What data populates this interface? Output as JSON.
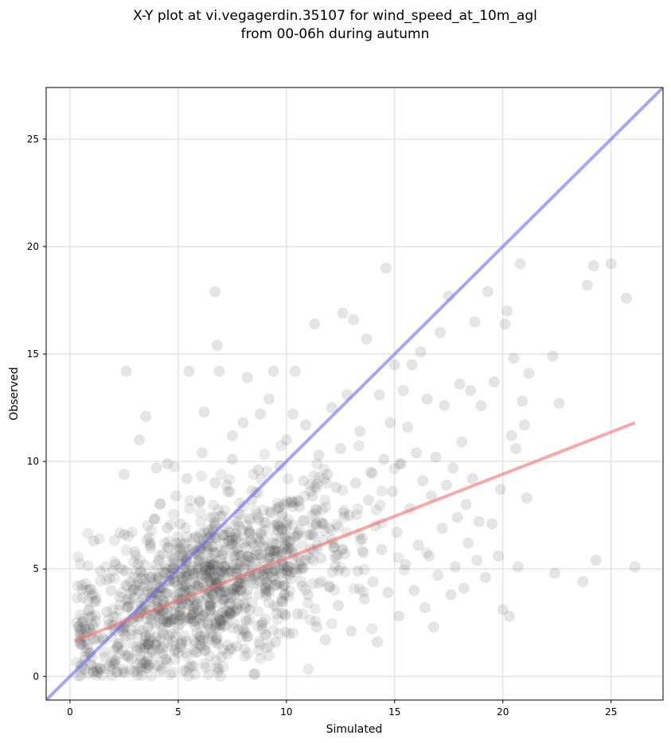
{
  "chart_data": {
    "type": "scatter",
    "title_line1": "X-Y plot at vi.vegagerdin.35107 for wind_speed_at_10m_agl",
    "title_line2": "from 00-06h during autumn",
    "xlabel": "Simulated",
    "ylabel": "Observed",
    "xlim": [
      -1.1,
      27.4
    ],
    "ylim": [
      -1.1,
      27.4
    ],
    "xticks": [
      0,
      5,
      10,
      15,
      20,
      25
    ],
    "yticks": [
      0,
      5,
      10,
      15,
      20,
      25
    ],
    "xtick_labels": [
      "0",
      "5",
      "10",
      "15",
      "20",
      "25"
    ],
    "ytick_labels": [
      "0",
      "5",
      "10",
      "15",
      "20",
      "25"
    ],
    "grid": true,
    "colors": {
      "points": "#333333",
      "identity_line": "#6b6bf0",
      "fit_line": "#f07070",
      "grid": "#e6e6e6"
    },
    "identity_line": {
      "x": [
        -1.1,
        27.4
      ],
      "y": [
        -1.1,
        27.4
      ]
    },
    "fit_line": {
      "x": [
        0.2,
        26.1
      ],
      "y": [
        1.65,
        11.8
      ]
    },
    "points": [
      [
        0.5,
        1.5
      ],
      [
        0.7,
        2.2
      ],
      [
        0.9,
        1.1
      ],
      [
        1.0,
        2.8
      ],
      [
        1.1,
        6.3
      ],
      [
        1.2,
        3.5
      ],
      [
        1.3,
        0.2
      ],
      [
        1.4,
        4.9
      ],
      [
        1.5,
        1.8
      ],
      [
        1.7,
        3.0
      ],
      [
        1.8,
        2.4
      ],
      [
        1.9,
        4.0
      ],
      [
        2.0,
        0.6
      ],
      [
        2.1,
        5.2
      ],
      [
        2.2,
        1.4
      ],
      [
        2.3,
        3.7
      ],
      [
        2.4,
        2.1
      ],
      [
        2.5,
        6.6
      ],
      [
        2.5,
        9.4
      ],
      [
        2.6,
        14.2
      ],
      [
        2.7,
        0.9
      ],
      [
        2.8,
        4.4
      ],
      [
        2.9,
        2.7
      ],
      [
        3.0,
        5.8
      ],
      [
        3.1,
        1.2
      ],
      [
        3.2,
        11.0
      ],
      [
        3.3,
        3.1
      ],
      [
        3.4,
        4.7
      ],
      [
        3.5,
        12.1
      ],
      [
        3.5,
        0.4
      ],
      [
        3.6,
        2.3
      ],
      [
        3.7,
        6.1
      ],
      [
        3.8,
        3.9
      ],
      [
        3.9,
        7.3
      ],
      [
        4.0,
        1.6
      ],
      [
        4.0,
        9.7
      ],
      [
        4.1,
        5.4
      ],
      [
        4.2,
        2.9
      ],
      [
        4.3,
        4.1
      ],
      [
        4.4,
        0.8
      ],
      [
        4.5,
        6.9
      ],
      [
        4.5,
        9.9
      ],
      [
        4.6,
        3.3
      ],
      [
        4.7,
        2.0
      ],
      [
        4.8,
        5.0
      ],
      [
        4.9,
        8.4
      ],
      [
        5.0,
        1.1
      ],
      [
        5.0,
        3.6
      ],
      [
        5.1,
        7.1
      ],
      [
        5.2,
        4.5
      ],
      [
        5.3,
        2.6
      ],
      [
        5.4,
        9.2
      ],
      [
        5.5,
        14.2
      ],
      [
        5.5,
        5.9
      ],
      [
        5.6,
        0.5
      ],
      [
        5.7,
        3.0
      ],
      [
        5.8,
        6.5
      ],
      [
        5.9,
        4.2
      ],
      [
        6.0,
        8.1
      ],
      [
        6.0,
        1.9
      ],
      [
        6.1,
        10.4
      ],
      [
        6.2,
        12.3
      ],
      [
        6.3,
        5.1
      ],
      [
        6.4,
        2.4
      ],
      [
        6.5,
        7.4
      ],
      [
        6.6,
        3.8
      ],
      [
        6.7,
        9.0
      ],
      [
        6.7,
        17.9
      ],
      [
        6.8,
        15.4
      ],
      [
        6.9,
        14.2
      ],
      [
        7.0,
        4.9
      ],
      [
        7.0,
        0.9
      ],
      [
        7.1,
        6.2
      ],
      [
        7.2,
        2.8
      ],
      [
        7.3,
        8.6
      ],
      [
        7.4,
        3.4
      ],
      [
        7.5,
        10.1
      ],
      [
        7.5,
        11.2
      ],
      [
        7.6,
        5.6
      ],
      [
        7.7,
        1.4
      ],
      [
        7.8,
        7.0
      ],
      [
        7.9,
        4.0
      ],
      [
        8.0,
        11.8
      ],
      [
        8.0,
        2.2
      ],
      [
        8.1,
        6.0
      ],
      [
        8.2,
        13.9
      ],
      [
        8.3,
        3.1
      ],
      [
        8.4,
        8.2
      ],
      [
        8.5,
        0.1
      ],
      [
        8.6,
        5.3
      ],
      [
        8.7,
        9.6
      ],
      [
        8.8,
        12.2
      ],
      [
        8.9,
        2.5
      ],
      [
        9.0,
        6.8
      ],
      [
        9.1,
        4.4
      ],
      [
        9.2,
        12.9
      ],
      [
        9.3,
        7.6
      ],
      [
        9.4,
        14.2
      ],
      [
        9.5,
        1.6
      ],
      [
        9.6,
        5.8
      ],
      [
        9.7,
        9.8
      ],
      [
        9.8,
        3.5
      ],
      [
        9.9,
        8.0
      ],
      [
        10.0,
        11.0
      ],
      [
        10.1,
        4.7
      ],
      [
        10.2,
        6.3
      ],
      [
        10.3,
        12.2
      ],
      [
        10.4,
        14.2
      ],
      [
        10.5,
        2.9
      ],
      [
        10.6,
        7.9
      ],
      [
        10.7,
        5.0
      ],
      [
        10.8,
        9.1
      ],
      [
        10.9,
        11.7
      ],
      [
        11.0,
        3.8
      ],
      [
        11.1,
        6.6
      ],
      [
        11.2,
        8.4
      ],
      [
        11.3,
        16.4
      ],
      [
        11.4,
        2.3
      ],
      [
        11.5,
        10.3
      ],
      [
        11.6,
        5.5
      ],
      [
        11.7,
        7.1
      ],
      [
        11.8,
        1.7
      ],
      [
        11.9,
        9.4
      ],
      [
        12.0,
        4.2
      ],
      [
        12.1,
        12.5
      ],
      [
        12.2,
        6.0
      ],
      [
        12.3,
        8.8
      ],
      [
        12.4,
        3.3
      ],
      [
        12.5,
        10.6
      ],
      [
        12.6,
        16.9
      ],
      [
        12.7,
        5.7
      ],
      [
        12.8,
        13.1
      ],
      [
        12.9,
        7.5
      ],
      [
        13.0,
        2.1
      ],
      [
        13.1,
        16.6
      ],
      [
        13.2,
        9.0
      ],
      [
        13.3,
        4.9
      ],
      [
        13.4,
        11.4
      ],
      [
        13.5,
        6.4
      ],
      [
        13.6,
        3.6
      ],
      [
        13.7,
        15.7
      ],
      [
        13.8,
        8.2
      ],
      [
        13.9,
        9.5
      ],
      [
        14.0,
        4.4
      ],
      [
        14.1,
        7.0
      ],
      [
        14.2,
        1.6
      ],
      [
        14.3,
        13.1
      ],
      [
        14.4,
        5.9
      ],
      [
        14.5,
        10.1
      ],
      [
        14.6,
        19.0
      ],
      [
        14.7,
        3.9
      ],
      [
        14.8,
        11.8
      ],
      [
        14.9,
        8.6
      ],
      [
        15.0,
        14.5
      ],
      [
        15.1,
        6.7
      ],
      [
        15.2,
        2.8
      ],
      [
        15.3,
        9.9
      ],
      [
        15.4,
        13.3
      ],
      [
        15.5,
        5.2
      ],
      [
        15.6,
        11.6
      ],
      [
        15.7,
        7.8
      ],
      [
        15.8,
        14.5
      ],
      [
        15.9,
        4.0
      ],
      [
        16.0,
        10.4
      ],
      [
        16.1,
        6.1
      ],
      [
        16.2,
        15.1
      ],
      [
        16.3,
        9.1
      ],
      [
        16.4,
        3.2
      ],
      [
        16.5,
        12.9
      ],
      [
        16.6,
        5.6
      ],
      [
        16.7,
        8.4
      ],
      [
        16.8,
        2.3
      ],
      [
        16.9,
        10.2
      ],
      [
        17.0,
        4.7
      ],
      [
        17.1,
        16.0
      ],
      [
        17.2,
        6.9
      ],
      [
        17.3,
        12.6
      ],
      [
        17.4,
        8.9
      ],
      [
        17.5,
        17.7
      ],
      [
        17.6,
        3.8
      ],
      [
        17.7,
        9.7
      ],
      [
        17.8,
        5.1
      ],
      [
        17.9,
        7.4
      ],
      [
        18.0,
        13.6
      ],
      [
        18.1,
        10.9
      ],
      [
        18.2,
        4.1
      ],
      [
        18.3,
        8.0
      ],
      [
        18.4,
        6.2
      ],
      [
        18.5,
        13.3
      ],
      [
        18.6,
        9.2
      ],
      [
        18.7,
        16.5
      ],
      [
        18.8,
        5.4
      ],
      [
        18.9,
        7.2
      ],
      [
        19.0,
        12.6
      ],
      [
        19.2,
        4.6
      ],
      [
        19.3,
        17.9
      ],
      [
        19.5,
        7.1
      ],
      [
        19.6,
        13.7
      ],
      [
        19.8,
        5.6
      ],
      [
        19.9,
        8.7
      ],
      [
        20.0,
        3.1
      ],
      [
        20.1,
        16.4
      ],
      [
        20.2,
        17.0
      ],
      [
        20.3,
        2.8
      ],
      [
        20.4,
        11.2
      ],
      [
        20.5,
        14.8
      ],
      [
        20.6,
        10.6
      ],
      [
        20.7,
        5.1
      ],
      [
        20.8,
        19.2
      ],
      [
        20.9,
        12.8
      ],
      [
        21.0,
        11.7
      ],
      [
        21.1,
        8.3
      ],
      [
        21.2,
        14.1
      ],
      [
        22.3,
        14.9
      ],
      [
        22.4,
        4.8
      ],
      [
        22.6,
        12.7
      ],
      [
        23.7,
        4.4
      ],
      [
        23.9,
        18.2
      ],
      [
        24.2,
        19.1
      ],
      [
        24.3,
        5.4
      ],
      [
        25.0,
        19.2
      ],
      [
        25.7,
        17.6
      ],
      [
        26.1,
        5.1
      ]
    ],
    "dense_cluster": {
      "note_x_range": [
        0.5,
        14.0
      ],
      "note_y_range": [
        0.0,
        8.5
      ]
    }
  }
}
